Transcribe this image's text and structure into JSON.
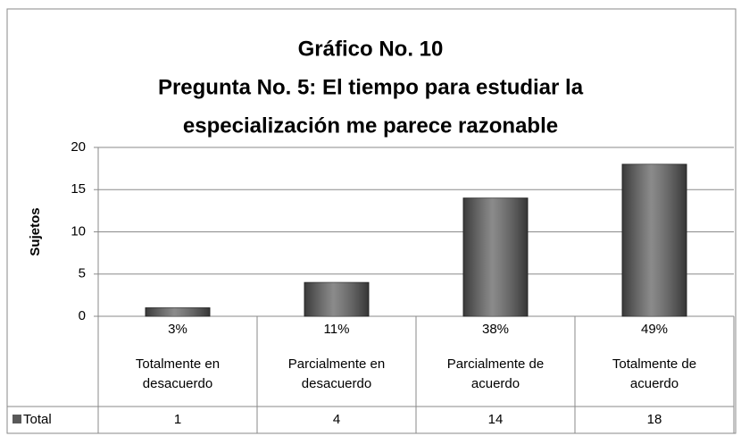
{
  "chart_data": {
    "type": "bar",
    "title": [
      "Gráfico No. 10",
      "Pregunta No. 5: El tiempo para estudiar la",
      "especialización me parece razonable"
    ],
    "y_label": "Sujetos",
    "categories": [
      "Totalmente en desacuerdo",
      "Parcialmente en desacuerdo",
      "Parcialmente de acuerdo",
      "Totalmente de acuerdo"
    ],
    "percentages": [
      "3%",
      "11%",
      "38%",
      "49%"
    ],
    "series": [
      {
        "name": "Total",
        "color": "#595959",
        "values": [
          1,
          4,
          14,
          18
        ]
      }
    ],
    "ylim": [
      0,
      20
    ],
    "yticks": [
      0,
      5,
      10,
      15,
      20
    ],
    "grid": true
  }
}
